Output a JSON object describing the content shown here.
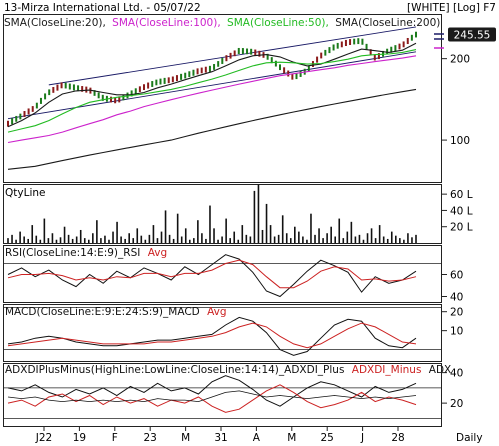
{
  "header": {
    "title": "13-Mirza International Ltd. - 05/07/22",
    "mode": "[WHITE] [Log] F7"
  },
  "colors": {
    "price_bar": "#1a7a1a",
    "price_bar_alt": "#8b1a1a",
    "sma20": "#1a1a1a",
    "sma100": "#cc22cc",
    "sma50": "#22bb22",
    "sma200": "#1a1a1a",
    "last_price_bg": "#1a1a1a",
    "indicator_main": "#111111",
    "indicator_signal": "#cc2222",
    "volume": "#111111",
    "channel": "#1a1a66"
  },
  "chart_data": [
    {
      "type": "line",
      "panel": "price",
      "scale": "log",
      "ylim": [
        70,
        290
      ],
      "ticks": [
        {
          "value": 200,
          "label": "200"
        },
        {
          "value": 100,
          "label": "100"
        }
      ],
      "last_price": 245.55,
      "last_price_label": "245.55",
      "legend": [
        {
          "text": "SMA(CloseLine:20),",
          "color": "#1a1a1a"
        },
        {
          "text": "SMA(CloseLine:100),",
          "color": "#cc22cc"
        },
        {
          "text": "SMA(CloseLine:50),",
          "color": "#22bb22"
        },
        {
          "text": "SMA(CloseLine:200)",
          "color": "#1a1a1a"
        }
      ],
      "x": [
        0,
        6,
        12,
        18,
        24,
        30,
        36,
        42,
        48,
        54,
        60,
        66,
        72,
        78,
        84,
        90,
        96,
        102,
        108,
        114,
        120,
        126,
        132,
        138,
        144,
        150,
        156,
        162,
        168,
        174,
        180
      ],
      "series": [
        {
          "name": "price",
          "values": [
            115,
            123,
            132,
            150,
            160,
            156,
            153,
            143,
            140,
            148,
            157,
            164,
            167,
            173,
            180,
            184,
            200,
            214,
            212,
            205,
            186,
            170,
            181,
            205,
            221,
            230,
            233,
            201,
            214,
            224,
            245.55
          ]
        },
        {
          "name": "SMA(CloseLine:20)",
          "values": [
            112,
            118,
            126,
            138,
            148,
            152,
            153,
            150,
            147,
            147,
            150,
            156,
            161,
            167,
            173,
            179,
            188,
            198,
            205,
            207,
            203,
            194,
            188,
            191,
            199,
            208,
            217,
            214,
            211,
            215,
            228
          ]
        },
        {
          "name": "SMA(CloseLine:50)",
          "values": [
            107,
            110,
            113,
            118,
            125,
            132,
            138,
            141,
            144,
            146,
            148,
            151,
            154,
            158,
            163,
            168,
            174,
            181,
            188,
            193,
            194,
            193,
            191,
            192,
            195,
            199,
            205,
            207,
            208,
            211,
            216
          ]
        },
        {
          "name": "SMA(CloseLine:100)",
          "values": [
            98,
            100,
            102,
            104,
            107,
            111,
            115,
            119,
            124,
            128,
            133,
            137,
            141,
            145,
            149,
            153,
            157,
            161,
            165,
            169,
            173,
            176,
            179,
            182,
            185,
            189,
            192,
            195,
            198,
            201,
            205
          ]
        },
        {
          "name": "SMA(CloseLine:200)",
          "values": [
            78,
            79,
            80,
            82,
            84,
            86,
            88,
            90,
            92,
            94,
            96,
            98,
            100,
            103,
            106,
            109,
            112,
            115,
            118,
            121,
            124,
            127,
            130,
            133,
            136,
            139,
            142,
            145,
            148,
            151,
            154
          ]
        }
      ]
    },
    {
      "type": "bar",
      "panel": "volume",
      "title": "QtyLine",
      "ylim": [
        0,
        70
      ],
      "ticks": [
        {
          "value": 60,
          "label": "60 L"
        },
        {
          "value": 40,
          "label": "40 L"
        },
        {
          "value": 20,
          "label": "20 L"
        }
      ],
      "values": [
        6,
        10,
        4,
        14,
        8,
        5,
        22,
        9,
        4,
        30,
        6,
        12,
        4,
        7,
        20,
        10,
        5,
        8,
        16,
        6,
        4,
        12,
        28,
        6,
        9,
        4,
        14,
        26,
        8,
        5,
        12,
        6,
        18,
        9,
        4,
        10,
        22,
        6,
        14,
        40,
        10,
        5,
        36,
        8,
        18,
        4,
        6,
        28,
        12,
        5,
        46,
        18,
        4,
        8,
        30,
        6,
        14,
        4,
        22,
        10,
        8,
        64,
        72,
        16,
        48,
        22,
        8,
        10,
        34,
        12,
        6,
        20,
        14,
        8,
        4,
        36,
        10,
        18,
        6,
        12,
        20,
        8,
        30,
        6,
        14,
        26,
        8,
        10,
        4,
        12,
        18,
        6,
        22,
        8,
        5,
        14,
        9,
        6,
        4,
        12,
        7,
        10
      ]
    },
    {
      "type": "line",
      "panel": "rsi",
      "title": "RSI(CloseLine:14:E:9)_RSI",
      "signal_label": "Avg",
      "ylim": [
        35,
        85
      ],
      "ticks": [
        {
          "value": 60,
          "label": "60"
        },
        {
          "value": 40,
          "label": "40"
        }
      ],
      "guides": [
        70,
        30
      ],
      "x": [
        0,
        6,
        12,
        18,
        24,
        30,
        36,
        42,
        48,
        54,
        60,
        66,
        72,
        78,
        84,
        90,
        96,
        102,
        108,
        114,
        120,
        126,
        132,
        138,
        144,
        150,
        156,
        162,
        168,
        174,
        180
      ],
      "series": [
        {
          "name": "RSI",
          "values": [
            60,
            66,
            58,
            64,
            55,
            49,
            60,
            52,
            63,
            57,
            66,
            61,
            55,
            67,
            60,
            69,
            78,
            74,
            62,
            45,
            40,
            51,
            63,
            73,
            68,
            62,
            44,
            58,
            52,
            55,
            63
          ]
        },
        {
          "name": "Avg",
          "values": [
            57,
            60,
            60,
            61,
            59,
            55,
            57,
            55,
            58,
            57,
            61,
            61,
            58,
            61,
            61,
            64,
            70,
            73,
            69,
            58,
            48,
            48,
            54,
            63,
            67,
            65,
            55,
            56,
            54,
            55,
            58
          ]
        }
      ]
    },
    {
      "type": "line",
      "panel": "macd",
      "title": "MACD(CloseLine:E:9:E:24:S:9)_MACD",
      "signal_label": "Avg",
      "ylim": [
        -6,
        23
      ],
      "ticks": [
        {
          "value": 20,
          "label": "20"
        },
        {
          "value": 10,
          "label": "10"
        }
      ],
      "guides": [
        0
      ],
      "x": [
        0,
        6,
        12,
        18,
        24,
        30,
        36,
        42,
        48,
        54,
        60,
        66,
        72,
        78,
        84,
        90,
        96,
        102,
        108,
        114,
        120,
        126,
        132,
        138,
        144,
        150,
        156,
        162,
        168,
        174,
        180
      ],
      "series": [
        {
          "name": "MACD",
          "values": [
            3,
            4,
            6,
            7,
            6,
            4,
            3,
            2,
            2,
            3,
            4,
            5,
            5,
            6,
            7,
            8,
            13,
            17,
            15,
            9,
            0,
            -3,
            -1,
            6,
            13,
            16,
            15,
            6,
            2,
            1,
            6
          ]
        },
        {
          "name": "Avg",
          "values": [
            2,
            3,
            4,
            5,
            6,
            5,
            4,
            3,
            3,
            3,
            3,
            4,
            4,
            5,
            6,
            7,
            9,
            12,
            14,
            12,
            7,
            3,
            1,
            3,
            7,
            11,
            14,
            12,
            8,
            4,
            3
          ]
        }
      ]
    },
    {
      "type": "line",
      "panel": "adx",
      "title": "ADXDIPlusMinus(HighLine:LowLine:CloseLine:14:14)_ADXDI_Plus",
      "extra_labels": [
        {
          "text": "ADXDI_Minus",
          "color": "#cc2222"
        },
        {
          "text": "ADX",
          "color": "#111111"
        }
      ],
      "ylim": [
        5,
        45
      ],
      "ticks": [
        {
          "value": 40,
          "label": "40"
        },
        {
          "value": 20,
          "label": "20"
        }
      ],
      "guides": [
        30,
        10
      ],
      "x": [
        0,
        6,
        12,
        18,
        24,
        30,
        36,
        42,
        48,
        54,
        60,
        66,
        72,
        78,
        84,
        90,
        96,
        102,
        108,
        114,
        120,
        126,
        132,
        138,
        144,
        150,
        156,
        162,
        168,
        174,
        180
      ],
      "series": [
        {
          "name": "ADXDI_Plus",
          "values": [
            30,
            28,
            32,
            27,
            24,
            29,
            26,
            30,
            25,
            31,
            27,
            33,
            28,
            30,
            26,
            34,
            38,
            35,
            29,
            22,
            18,
            24,
            30,
            34,
            32,
            28,
            24,
            31,
            27,
            29,
            33
          ]
        },
        {
          "name": "ADXDI_Minus",
          "values": [
            20,
            22,
            18,
            24,
            26,
            21,
            25,
            19,
            24,
            20,
            23,
            18,
            22,
            20,
            24,
            18,
            14,
            16,
            22,
            28,
            32,
            27,
            21,
            17,
            19,
            22,
            27,
            21,
            24,
            22,
            19
          ]
        },
        {
          "name": "ADX",
          "values": [
            24,
            23,
            24,
            22,
            21,
            22,
            21,
            22,
            21,
            22,
            21,
            23,
            22,
            22,
            21,
            24,
            27,
            28,
            26,
            24,
            25,
            24,
            23,
            24,
            25,
            24,
            23,
            24,
            23,
            24,
            25
          ]
        }
      ]
    }
  ],
  "x_axis": {
    "labels": [
      "J22",
      "19",
      "F",
      "23",
      "M",
      "31",
      "A",
      "M",
      "25",
      "J",
      "28"
    ],
    "periodicity": "Daily"
  }
}
